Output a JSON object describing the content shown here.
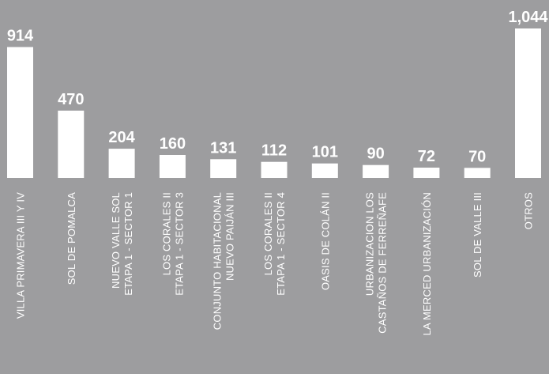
{
  "chart_data": {
    "type": "bar",
    "title": "",
    "xlabel": "",
    "ylabel": "",
    "ylim": [
      0,
      1044
    ],
    "grid": false,
    "categories": [
      [
        "VILLA PRIMAVERA III Y IV"
      ],
      [
        "SOL DE POMALCA"
      ],
      [
        "NUEVO VALLE SOL",
        "ETAPA 1 - SECTOR 1"
      ],
      [
        "LOS CORALES II",
        "ETAPA 1 - SECTOR 3"
      ],
      [
        "CONJUNTO HABITACIONAL",
        "NUEVO PAIJÁN III"
      ],
      [
        "LOS CORALES II",
        "ETAPA 1 - SECTOR 4"
      ],
      [
        "OASIS DE COLÁN II"
      ],
      [
        "URBANIZACION LOS",
        "CASTAÑOS DE FERREÑAFE"
      ],
      [
        "LA MERCED URBANIZACIÓN"
      ],
      [
        "SOL DE VALLE III"
      ],
      [
        "OTROS"
      ]
    ],
    "values": [
      914,
      470,
      204,
      160,
      131,
      112,
      101,
      90,
      72,
      70,
      1044
    ],
    "value_labels": [
      "914",
      "470",
      "204",
      "160",
      "131",
      "112",
      "101",
      "90",
      "72",
      "70",
      "1,044"
    ],
    "colors": {
      "background": "#9d9d9f",
      "bar": "#ffffff",
      "text": "#ffffff"
    }
  }
}
